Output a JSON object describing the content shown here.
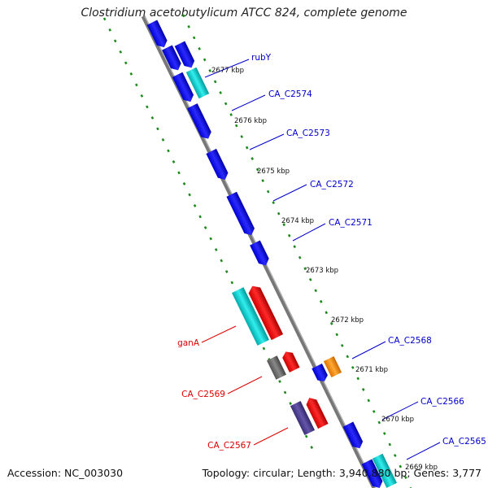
{
  "title": "Clostridium acetobutylicum ATCC 824, complete genome",
  "footer": {
    "accession": "Accession: NC_003030",
    "summary": "Topology: circular; Length: 3,940,880 bp; Genes: 3,777"
  },
  "colors": {
    "forward_gene": "#0000ee",
    "reverse_gene": "#ee0000",
    "cyan_feature": "#00cccc",
    "orange_feature": "#ff8c00",
    "gray_feature": "#666666",
    "purple_feature": "#4b3c8a",
    "dotted_track": "#1a8a1a",
    "backbone": "#777777",
    "label_forward": "#0000cc",
    "label_reverse": "#dd0000"
  },
  "kbp_ticks": [
    "2677 kbp",
    "2676 kbp",
    "2675 kbp",
    "2674 kbp",
    "2673 kbp",
    "2672 kbp",
    "2671 kbp",
    "2670 kbp",
    "2669 kbp"
  ],
  "gene_labels": {
    "forward": [
      "rubY",
      "CA_C2574",
      "CA_C2573",
      "CA_C2572",
      "CA_C2571",
      "CA_C2568",
      "CA_C2566",
      "CA_C2565"
    ],
    "reverse": [
      "ganA",
      "CA_C2569",
      "CA_C2567"
    ]
  }
}
